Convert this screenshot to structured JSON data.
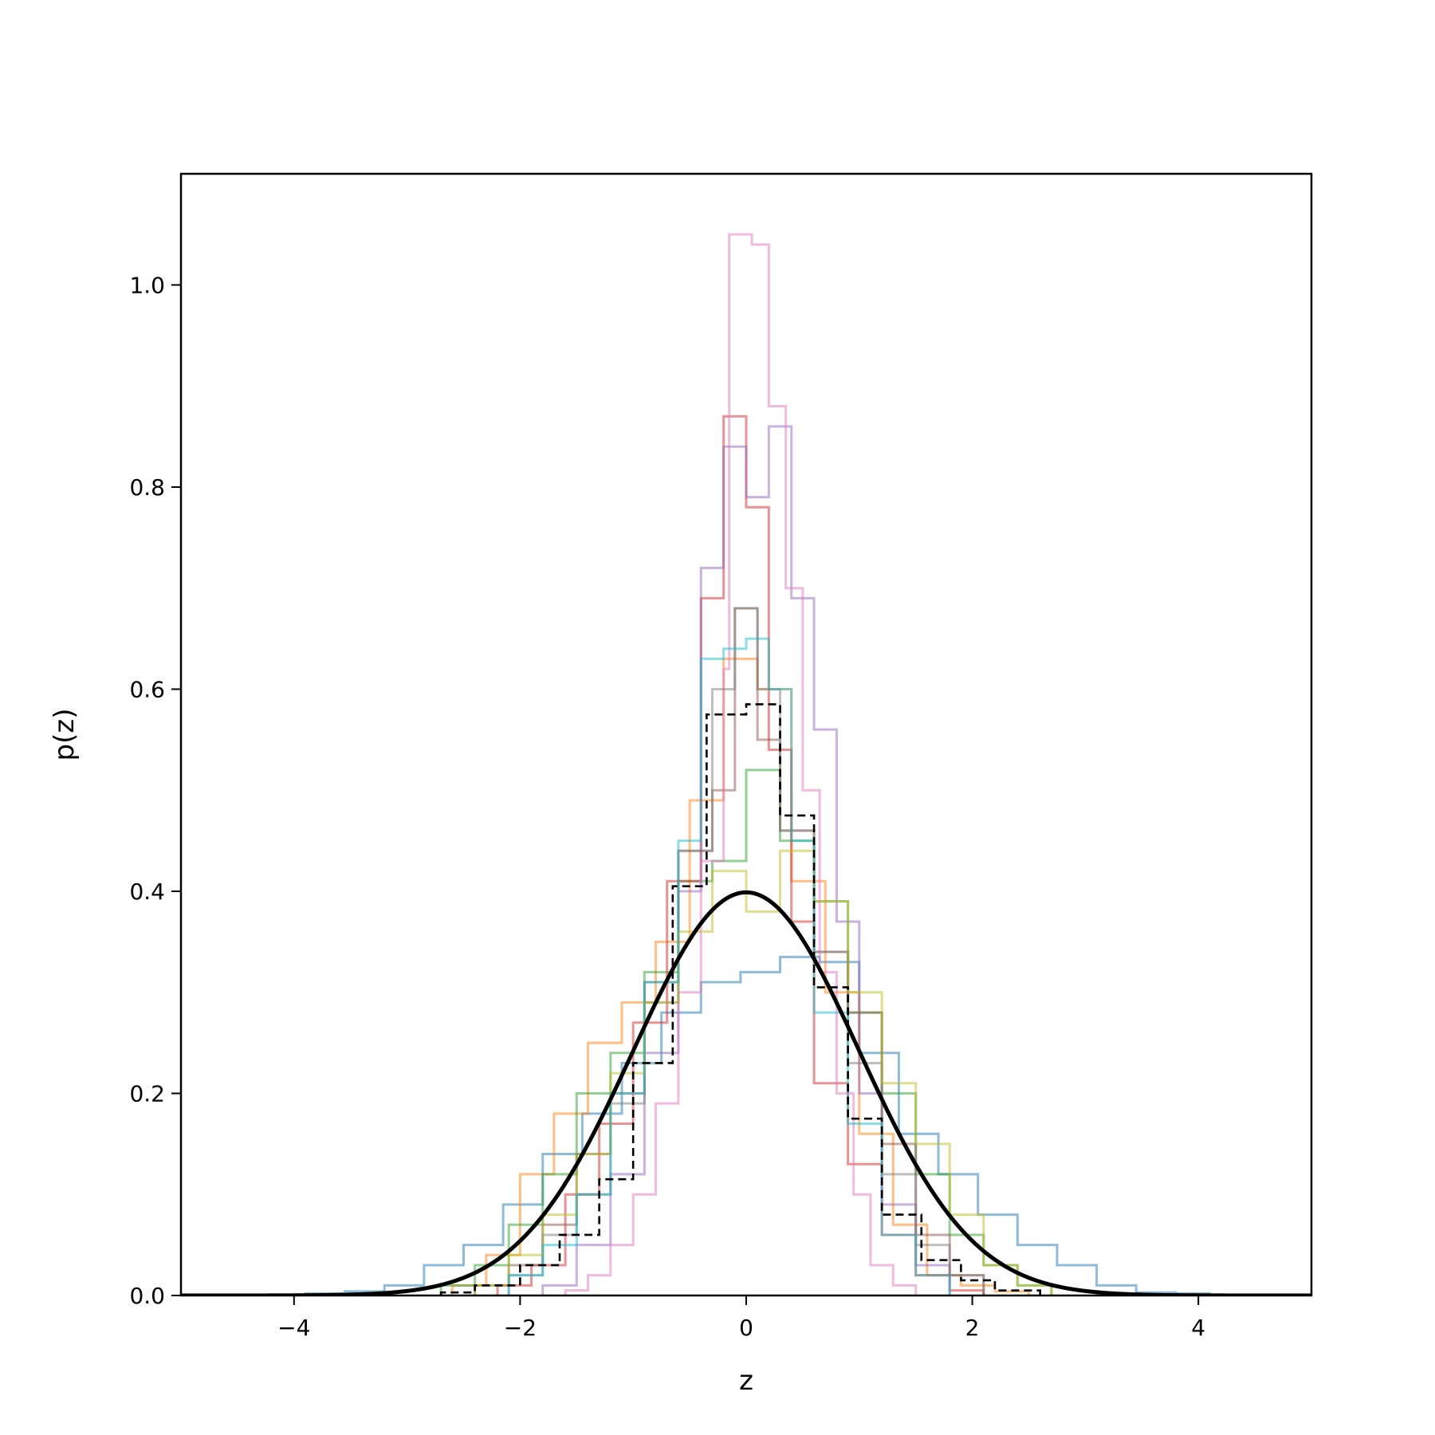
{
  "chart_data": {
    "type": "line",
    "title": "",
    "xlabel": "z",
    "ylabel": "p(z)",
    "xlim": [
      -5,
      5
    ],
    "ylim": [
      0,
      1.11
    ],
    "x_ticks": [
      -4,
      -2,
      0,
      2,
      4
    ],
    "x_tick_labels": [
      "−4",
      "−2",
      "0",
      "2",
      "4"
    ],
    "y_ticks": [
      0.0,
      0.2,
      0.4,
      0.6,
      0.8,
      1.0
    ],
    "y_tick_labels": [
      "0.0",
      "0.2",
      "0.4",
      "0.6",
      "0.8",
      "1.0"
    ],
    "grid": false,
    "legend": "none",
    "histograms": [
      {
        "color": "#1f77b4",
        "edges": [
          -3.9,
          -3.55,
          -3.2,
          -2.85,
          -2.5,
          -2.15,
          -1.8,
          -1.45,
          -1.1,
          -0.75,
          -0.4,
          -0.05,
          0.3,
          0.65,
          1.0,
          1.35,
          1.7,
          2.05,
          2.4,
          2.75,
          3.1,
          3.45,
          3.8,
          4.1
        ],
        "values": [
          0.002,
          0.004,
          0.01,
          0.03,
          0.05,
          0.09,
          0.14,
          0.18,
          0.23,
          0.28,
          0.31,
          0.32,
          0.335,
          0.33,
          0.24,
          0.16,
          0.12,
          0.08,
          0.05,
          0.03,
          0.01,
          0.003,
          0.002
        ]
      },
      {
        "color": "#ff7f0e",
        "edges": [
          -2.6,
          -2.3,
          -2.0,
          -1.7,
          -1.4,
          -1.1,
          -0.8,
          -0.5,
          -0.2,
          0.1,
          0.4,
          0.7,
          1.0,
          1.3,
          1.6,
          1.9,
          2.2,
          2.5
        ],
        "values": [
          0.01,
          0.04,
          0.12,
          0.18,
          0.25,
          0.29,
          0.35,
          0.49,
          0.63,
          0.6,
          0.41,
          0.3,
          0.16,
          0.07,
          0.02,
          0.01,
          0.004
        ]
      },
      {
        "color": "#2ca02c",
        "edges": [
          -2.7,
          -2.4,
          -2.1,
          -1.8,
          -1.5,
          -1.2,
          -0.9,
          -0.6,
          -0.3,
          0.0,
          0.3,
          0.6,
          0.9,
          1.2,
          1.5,
          1.8,
          2.1,
          2.4,
          2.7
        ],
        "values": [
          0.01,
          0.03,
          0.07,
          0.12,
          0.2,
          0.24,
          0.32,
          0.41,
          0.43,
          0.52,
          0.45,
          0.39,
          0.28,
          0.2,
          0.12,
          0.06,
          0.03,
          0.01
        ]
      },
      {
        "color": "#d62728",
        "edges": [
          -2.2,
          -1.9,
          -1.6,
          -1.3,
          -1.0,
          -0.7,
          -0.4,
          -0.2,
          0.0,
          0.2,
          0.4,
          0.6,
          0.9,
          1.2,
          1.5,
          1.8,
          2.1
        ],
        "values": [
          0.01,
          0.03,
          0.1,
          0.17,
          0.27,
          0.41,
          0.69,
          0.87,
          0.78,
          0.54,
          0.37,
          0.21,
          0.13,
          0.06,
          0.02,
          0.005
        ]
      },
      {
        "color": "#9467bd",
        "edges": [
          -1.8,
          -1.5,
          -1.2,
          -0.9,
          -0.6,
          -0.4,
          -0.2,
          0.0,
          0.2,
          0.4,
          0.6,
          0.8,
          1.0,
          1.2,
          1.5,
          1.8
        ],
        "values": [
          0.01,
          0.05,
          0.12,
          0.24,
          0.4,
          0.72,
          0.84,
          0.79,
          0.86,
          0.69,
          0.56,
          0.37,
          0.2,
          0.09,
          0.03
        ]
      },
      {
        "color": "#8c564b",
        "edges": [
          -2.4,
          -2.1,
          -1.8,
          -1.5,
          -1.2,
          -0.9,
          -0.6,
          -0.3,
          -0.1,
          0.1,
          0.3,
          0.6,
          0.9,
          1.2,
          1.5,
          1.8,
          2.1
        ],
        "values": [
          0.01,
          0.03,
          0.07,
          0.14,
          0.2,
          0.31,
          0.44,
          0.5,
          0.68,
          0.55,
          0.46,
          0.34,
          0.28,
          0.15,
          0.06,
          0.02
        ]
      },
      {
        "color": "#e377c2",
        "edges": [
          -1.6,
          -1.4,
          -1.2,
          -1.0,
          -0.8,
          -0.6,
          -0.4,
          -0.2,
          -0.15,
          0.05,
          0.2,
          0.35,
          0.5,
          0.65,
          0.8,
          0.95,
          1.1,
          1.3,
          1.5
        ],
        "values": [
          0.005,
          0.02,
          0.05,
          0.1,
          0.19,
          0.3,
          0.43,
          0.62,
          1.05,
          1.04,
          0.88,
          0.7,
          0.5,
          0.32,
          0.2,
          0.1,
          0.03,
          0.01
        ]
      },
      {
        "color": "#7f7f7f",
        "edges": [
          -2.1,
          -1.8,
          -1.5,
          -1.2,
          -0.9,
          -0.6,
          -0.3,
          -0.1,
          0.1,
          0.3,
          0.6,
          0.9,
          1.2,
          1.5,
          1.8,
          2.1
        ],
        "values": [
          0.02,
          0.06,
          0.1,
          0.19,
          0.29,
          0.44,
          0.6,
          0.68,
          0.6,
          0.46,
          0.34,
          0.23,
          0.12,
          0.05,
          0.02
        ]
      },
      {
        "color": "#bcbd22",
        "edges": [
          -2.4,
          -2.1,
          -1.8,
          -1.5,
          -1.2,
          -0.9,
          -0.6,
          -0.3,
          0.0,
          0.3,
          0.6,
          0.9,
          1.2,
          1.5,
          1.8,
          2.1,
          2.4,
          2.7
        ],
        "values": [
          0.01,
          0.04,
          0.08,
          0.14,
          0.22,
          0.29,
          0.36,
          0.42,
          0.38,
          0.44,
          0.39,
          0.3,
          0.21,
          0.15,
          0.08,
          0.03,
          0.01
        ]
      },
      {
        "color": "#17becf",
        "edges": [
          -2.1,
          -1.8,
          -1.5,
          -1.2,
          -0.9,
          -0.6,
          -0.4,
          -0.2,
          0.0,
          0.2,
          0.4,
          0.6,
          0.9,
          1.2,
          1.5,
          1.8
        ],
        "values": [
          0.02,
          0.05,
          0.1,
          0.2,
          0.31,
          0.45,
          0.63,
          0.64,
          0.65,
          0.6,
          0.45,
          0.28,
          0.17,
          0.06,
          0.02
        ]
      }
    ],
    "reference_histogram": {
      "color": "#000000",
      "style": "dashed",
      "edges": [
        -2.7,
        -2.4,
        -2.0,
        -1.65,
        -1.3,
        -1.0,
        -0.65,
        -0.35,
        0.0,
        0.3,
        0.6,
        0.9,
        1.2,
        1.55,
        1.9,
        2.2,
        2.6
      ],
      "values": [
        0.003,
        0.01,
        0.03,
        0.06,
        0.115,
        0.23,
        0.405,
        0.575,
        0.585,
        0.475,
        0.305,
        0.175,
        0.08,
        0.035,
        0.015,
        0.005
      ]
    },
    "reference_curve": {
      "color": "#000000",
      "function": "standard normal pdf",
      "mean": 0,
      "std": 1,
      "x_range": [
        -5,
        5
      ]
    }
  }
}
